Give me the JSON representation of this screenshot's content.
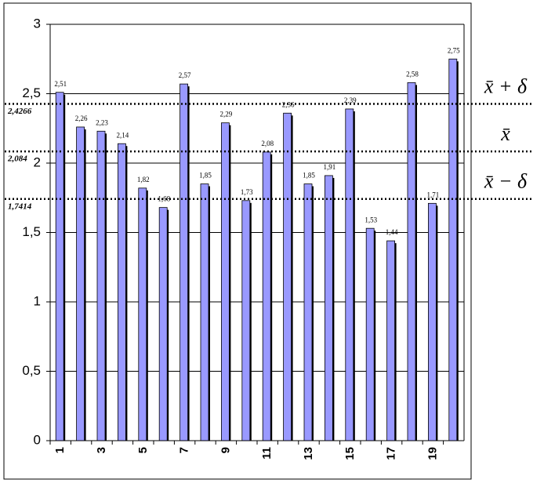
{
  "chart_data": {
    "type": "bar",
    "categories": [
      "1",
      null,
      "3",
      null,
      "5",
      null,
      "7",
      null,
      "9",
      null,
      "11",
      null,
      "13",
      null,
      "15",
      null,
      "17",
      null,
      "19",
      null
    ],
    "values": [
      2.51,
      2.26,
      2.23,
      2.14,
      1.82,
      1.68,
      2.57,
      1.85,
      2.29,
      1.73,
      2.08,
      2.36,
      1.85,
      1.91,
      2.39,
      1.53,
      1.44,
      2.58,
      1.71,
      2.75
    ],
    "value_labels": [
      "2,51",
      "2,26",
      "2,23",
      "2,14",
      "1,82",
      "1,68",
      "2,57",
      "1,85",
      "2,29",
      "1,73",
      "2,08",
      "2,36",
      "1,85",
      "1,91",
      "2,39",
      "1,53",
      "1,44",
      "2,58",
      "1,71",
      "2,75"
    ],
    "color": "#9999ff",
    "ylim": [
      0,
      3
    ],
    "yticks": [
      0,
      {
        "value": 0.5,
        "label": "0,5"
      },
      1,
      {
        "value": 1.5,
        "label": "1,5"
      },
      2,
      {
        "value": 2.5,
        "label": "2,5"
      },
      3
    ],
    "grid": true,
    "reference_lines": [
      {
        "value": 2.4266,
        "label": "2,4266",
        "name": "x̄ + δ"
      },
      {
        "value": 2.084,
        "label": "2,084",
        "name": "x̄"
      },
      {
        "value": 1.7414,
        "label": "1,7414",
        "name": "x̄ − δ"
      }
    ]
  }
}
